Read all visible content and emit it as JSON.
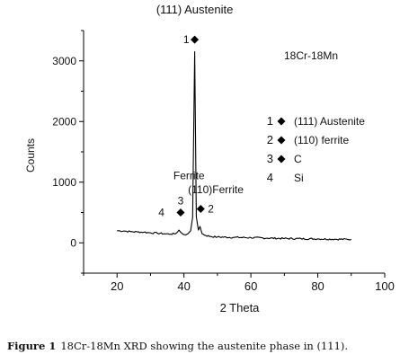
{
  "chart_data": {
    "type": "line",
    "title": "(111) Austenite",
    "subtitle": "18Cr-18Mn",
    "xlabel": "2 Theta",
    "ylabel": "Counts",
    "xlim": [
      10,
      100
    ],
    "ylim": [
      -500,
      3500
    ],
    "xticks": [
      20,
      40,
      60,
      80,
      100
    ],
    "yticks": [
      0,
      1000,
      2000,
      3000
    ],
    "grid": false,
    "line_color": "#000000",
    "series": [
      {
        "points": [
          [
            20,
            200
          ],
          [
            22,
            195
          ],
          [
            24,
            185
          ],
          [
            26,
            180
          ],
          [
            28,
            175
          ],
          [
            30,
            165
          ],
          [
            32,
            160
          ],
          [
            34,
            150
          ],
          [
            36,
            145
          ],
          [
            37.5,
            150
          ],
          [
            38.5,
            210
          ],
          [
            39,
            175
          ],
          [
            39.8,
            140
          ],
          [
            40.5,
            130
          ],
          [
            41.2,
            150
          ],
          [
            42,
            200
          ],
          [
            42.6,
            420
          ],
          [
            43.2,
            3150
          ],
          [
            43.7,
            430
          ],
          [
            44.3,
            210
          ],
          [
            44.8,
            270
          ],
          [
            45.4,
            150
          ],
          [
            46.5,
            120
          ],
          [
            48,
            105
          ],
          [
            50,
            95
          ],
          [
            55,
            90
          ],
          [
            60,
            85
          ],
          [
            65,
            78
          ],
          [
            70,
            72
          ],
          [
            75,
            68
          ],
          [
            80,
            65
          ],
          [
            85,
            60
          ],
          [
            90,
            58
          ]
        ]
      }
    ],
    "peak_markers": [
      {
        "label": "1",
        "x": 43.2,
        "y": 3350
      },
      {
        "label": "2",
        "x": 45,
        "y": 560
      },
      {
        "label": "3",
        "x": 39,
        "y": 500
      },
      {
        "label": "4",
        "x": 39,
        "y": 500
      }
    ],
    "annotations": [
      {
        "text": "Ferrite",
        "x": 41.5,
        "y": 1050
      },
      {
        "text": "(110)Ferrite",
        "x": 49.5,
        "y": 820
      }
    ],
    "legend": {
      "placement": "right",
      "entries": [
        {
          "number": "1",
          "marker": "diamond",
          "text": "(111) Austenite"
        },
        {
          "number": "2",
          "marker": "diamond",
          "text": "(110) ferrite"
        },
        {
          "number": "3",
          "marker": "diamond",
          "text": "C"
        },
        {
          "number": "4",
          "marker": "none",
          "text": "Si"
        }
      ]
    }
  },
  "caption": {
    "label": "Figure 1",
    "text": "18Cr-18Mn XRD showing the austenite phase in (111)."
  }
}
